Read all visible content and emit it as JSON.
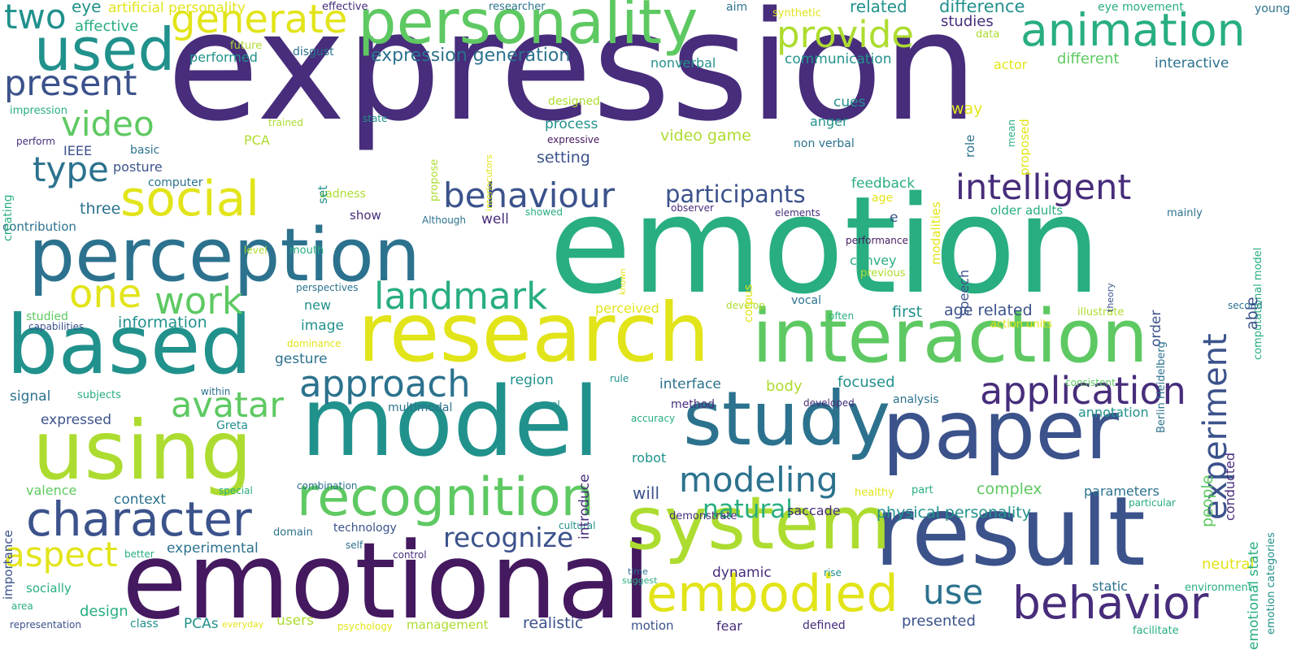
{
  "palette": {
    "c0": "#44195f",
    "c1": "#472d7b",
    "c2": "#3b528b",
    "c3": "#2c728e",
    "c4": "#21918c",
    "c5": "#28ae80",
    "c6": "#5ec962",
    "c7": "#addc30",
    "c8": "#e2e41a"
  },
  "words": [
    {
      "text": "expression",
      "color": "c1"
    },
    {
      "text": "emotion",
      "color": "c5"
    },
    {
      "text": "emotional",
      "color": "c0"
    },
    {
      "text": "model",
      "color": "c4"
    },
    {
      "text": "research",
      "color": "c8"
    },
    {
      "text": "interaction",
      "color": "c6"
    },
    {
      "text": "result",
      "color": "c2"
    },
    {
      "text": "paper",
      "color": "c2"
    },
    {
      "text": "study",
      "color": "c3"
    },
    {
      "text": "system",
      "color": "c7"
    },
    {
      "text": "perception",
      "color": "c3"
    },
    {
      "text": "based",
      "color": "c4"
    },
    {
      "text": "using",
      "color": "c7"
    },
    {
      "text": "personality",
      "color": "c6"
    },
    {
      "text": "animation",
      "color": "c5"
    },
    {
      "text": "used",
      "color": "c4"
    },
    {
      "text": "recognition",
      "color": "c6"
    },
    {
      "text": "embodied",
      "color": "c8"
    },
    {
      "text": "behavior",
      "color": "c1"
    },
    {
      "text": "character",
      "color": "c2"
    },
    {
      "text": "social",
      "color": "c8"
    },
    {
      "text": "application",
      "color": "c1"
    },
    {
      "text": "avatar",
      "color": "c6"
    },
    {
      "text": "approach",
      "color": "c3"
    },
    {
      "text": "generate",
      "color": "c8"
    },
    {
      "text": "provide",
      "color": "c7"
    },
    {
      "text": "present",
      "color": "c2"
    },
    {
      "text": "video",
      "color": "c6"
    },
    {
      "text": "landmark",
      "color": "c5"
    },
    {
      "text": "intelligent",
      "color": "c1"
    },
    {
      "text": "behaviour",
      "color": "c2"
    },
    {
      "text": "participants",
      "color": "c2"
    },
    {
      "text": "one",
      "color": "c8"
    },
    {
      "text": "work",
      "color": "c6"
    },
    {
      "text": "type",
      "color": "c3"
    },
    {
      "text": "aspect",
      "color": "c8"
    },
    {
      "text": "modeling",
      "color": "c3"
    },
    {
      "text": "use",
      "color": "c3"
    },
    {
      "text": "recognize",
      "color": "c2"
    },
    {
      "text": "two",
      "color": "c4"
    },
    {
      "text": "experiment",
      "color": "c2"
    },
    {
      "text": "expression generation",
      "color": "c3"
    },
    {
      "text": "related",
      "color": "c4"
    },
    {
      "text": "difference",
      "color": "c4"
    },
    {
      "text": "studies",
      "color": "c1"
    },
    {
      "text": "young",
      "color": "c3"
    },
    {
      "text": "eye movement",
      "color": "c5"
    },
    {
      "text": "artificial personality",
      "color": "c8"
    },
    {
      "text": "eye",
      "color": "c4"
    },
    {
      "text": "affective",
      "color": "c5"
    },
    {
      "text": "effective",
      "color": "c1"
    },
    {
      "text": "researcher",
      "color": "c3"
    },
    {
      "text": "aim",
      "color": "c3"
    },
    {
      "text": "synthetic",
      "color": "c8"
    },
    {
      "text": "data",
      "color": "c7"
    },
    {
      "text": "different",
      "color": "c6"
    },
    {
      "text": "interactive",
      "color": "c3"
    },
    {
      "text": "communication",
      "color": "c4"
    },
    {
      "text": "nonverbal",
      "color": "c4"
    },
    {
      "text": "actor",
      "color": "c8"
    },
    {
      "text": "future",
      "color": "c7"
    },
    {
      "text": "disgust",
      "color": "c3"
    },
    {
      "text": "performed",
      "color": "c4"
    },
    {
      "text": "impression",
      "color": "c5"
    },
    {
      "text": "trained",
      "color": "c7"
    },
    {
      "text": "state",
      "color": "c4"
    },
    {
      "text": "perform",
      "color": "c1"
    },
    {
      "text": "IEEE",
      "color": "c2"
    },
    {
      "text": "basic",
      "color": "c3"
    },
    {
      "text": "posture",
      "color": "c2"
    },
    {
      "text": "PCA",
      "color": "c7"
    },
    {
      "text": "computer",
      "color": "c3"
    },
    {
      "text": "sadness",
      "color": "c7"
    },
    {
      "text": "three",
      "color": "c3"
    },
    {
      "text": "show",
      "color": "c1"
    },
    {
      "text": "well",
      "color": "c1"
    },
    {
      "text": "contribution",
      "color": "c3"
    },
    {
      "text": "level",
      "color": "c7"
    },
    {
      "text": "mouth",
      "color": "c5"
    },
    {
      "text": "Although",
      "color": "c3"
    },
    {
      "text": "showed",
      "color": "c5"
    },
    {
      "text": "observer",
      "color": "c1"
    },
    {
      "text": "elements",
      "color": "c1"
    },
    {
      "text": "older adults",
      "color": "c5"
    },
    {
      "text": "mainly",
      "color": "c3"
    },
    {
      "text": "e",
      "color": "c2"
    },
    {
      "text": "performance",
      "color": "c0"
    },
    {
      "text": "convey",
      "color": "c5"
    },
    {
      "text": "previous",
      "color": "c7"
    },
    {
      "text": "perspectives",
      "color": "c3"
    },
    {
      "text": "develop",
      "color": "c7"
    },
    {
      "text": "vocal",
      "color": "c3"
    },
    {
      "text": "new",
      "color": "c4"
    },
    {
      "text": "perceived",
      "color": "c8"
    },
    {
      "text": "first",
      "color": "c4"
    },
    {
      "text": "age related",
      "color": "c2"
    },
    {
      "text": "illustrate",
      "color": "c7"
    },
    {
      "text": "second",
      "color": "c3"
    },
    {
      "text": "often",
      "color": "c5"
    },
    {
      "text": "studied",
      "color": "c6"
    },
    {
      "text": "capabilities",
      "color": "c2"
    },
    {
      "text": "information",
      "color": "c4"
    },
    {
      "text": "image",
      "color": "c4"
    },
    {
      "text": "action units",
      "color": "c8"
    },
    {
      "text": "dominance",
      "color": "c8"
    },
    {
      "text": "gesture",
      "color": "c3"
    },
    {
      "text": "rule",
      "color": "c4"
    },
    {
      "text": "interface",
      "color": "c3"
    },
    {
      "text": "body",
      "color": "c7"
    },
    {
      "text": "focused",
      "color": "c4"
    },
    {
      "text": "consistent",
      "color": "c6"
    },
    {
      "text": "region",
      "color": "c4"
    },
    {
      "text": "signal",
      "color": "c3"
    },
    {
      "text": "subjects",
      "color": "c5"
    },
    {
      "text": "within",
      "color": "c3"
    },
    {
      "text": "analysis",
      "color": "c3"
    },
    {
      "text": "method",
      "color": "c1"
    },
    {
      "text": "developed",
      "color": "c1"
    },
    {
      "text": "multimodal",
      "color": "c3"
    },
    {
      "text": "novel",
      "color": "c4"
    },
    {
      "text": "annotation",
      "color": "c4"
    },
    {
      "text": "expressed",
      "color": "c2"
    },
    {
      "text": "Greta",
      "color": "c4"
    },
    {
      "text": "accuracy",
      "color": "c5"
    },
    {
      "text": "robot",
      "color": "c4"
    },
    {
      "text": "valence",
      "color": "c6"
    },
    {
      "text": "context",
      "color": "c3"
    },
    {
      "text": "combination",
      "color": "c3"
    },
    {
      "text": "special",
      "color": "c5"
    },
    {
      "text": "will",
      "color": "c2"
    },
    {
      "text": "natural",
      "color": "c5"
    },
    {
      "text": "complex",
      "color": "c6"
    },
    {
      "text": "parameters",
      "color": "c3"
    },
    {
      "text": "healthy",
      "color": "c8"
    },
    {
      "text": "part",
      "color": "c5"
    },
    {
      "text": "particular",
      "color": "c5"
    },
    {
      "text": "domain",
      "color": "c3"
    },
    {
      "text": "demonstrate",
      "color": "c1"
    },
    {
      "text": "saccade",
      "color": "c1"
    },
    {
      "text": "physical personality",
      "color": "c4"
    },
    {
      "text": "technology",
      "color": "c2"
    },
    {
      "text": "cultural",
      "color": "c4"
    },
    {
      "text": "experimental",
      "color": "c3"
    },
    {
      "text": "self",
      "color": "c3"
    },
    {
      "text": "control",
      "color": "c1"
    },
    {
      "text": "better",
      "color": "c5"
    },
    {
      "text": "dynamic",
      "color": "c1"
    },
    {
      "text": "socially",
      "color": "c5"
    },
    {
      "text": "time",
      "color": "c3"
    },
    {
      "text": "suggest",
      "color": "c5"
    },
    {
      "text": "rise",
      "color": "c4"
    },
    {
      "text": "static",
      "color": "c3"
    },
    {
      "text": "environment",
      "color": "c5"
    },
    {
      "text": "neutral",
      "color": "c8"
    },
    {
      "text": "area",
      "color": "c5"
    },
    {
      "text": "design",
      "color": "c5"
    },
    {
      "text": "representation",
      "color": "c2"
    },
    {
      "text": "class",
      "color": "c4"
    },
    {
      "text": "PCAs",
      "color": "c4"
    },
    {
      "text": "everyday",
      "color": "c8"
    },
    {
      "text": "users",
      "color": "c7"
    },
    {
      "text": "psychology",
      "color": "c8"
    },
    {
      "text": "management",
      "color": "c7"
    },
    {
      "text": "realistic",
      "color": "c2"
    },
    {
      "text": "motion",
      "color": "c2"
    },
    {
      "text": "fear",
      "color": "c1"
    },
    {
      "text": "defined",
      "color": "c1"
    },
    {
      "text": "presented",
      "color": "c2"
    },
    {
      "text": "facilitate",
      "color": "c5"
    },
    {
      "text": "setting",
      "color": "c2"
    },
    {
      "text": "process",
      "color": "c4"
    },
    {
      "text": "video game",
      "color": "c7"
    },
    {
      "text": "anger",
      "color": "c4"
    },
    {
      "text": "cues",
      "color": "c4"
    },
    {
      "text": "expressive",
      "color": "c0"
    },
    {
      "text": "designed",
      "color": "c7"
    },
    {
      "text": "way",
      "color": "c8"
    },
    {
      "text": "non verbal",
      "color": "c3"
    },
    {
      "text": "feedback",
      "color": "c5"
    },
    {
      "text": "age",
      "color": "c8"
    },
    {
      "text": "creating",
      "color": "c5"
    },
    {
      "text": "importance",
      "color": "c2"
    },
    {
      "text": "modalities",
      "color": "c8"
    },
    {
      "text": "role",
      "color": "c3"
    },
    {
      "text": "mean",
      "color": "c5"
    },
    {
      "text": "proposed",
      "color": "c8"
    },
    {
      "text": "computational model",
      "color": "c5"
    },
    {
      "text": "set",
      "color": "c4"
    },
    {
      "text": "propose",
      "color": "c7"
    },
    {
      "text": "interlocutors",
      "color": "c8"
    },
    {
      "text": "corpus",
      "color": "c8"
    },
    {
      "text": "known",
      "color": "c8"
    },
    {
      "text": "speech",
      "color": "c2"
    },
    {
      "text": "order",
      "color": "c2"
    },
    {
      "text": "Berlin Heidelberg",
      "color": "c3"
    },
    {
      "text": "theory",
      "color": "c2"
    },
    {
      "text": "able",
      "color": "c2"
    },
    {
      "text": "introduce",
      "color": "c1"
    },
    {
      "text": "people",
      "color": "c6"
    },
    {
      "text": "conducted",
      "color": "c1"
    },
    {
      "text": "emotional state",
      "color": "c5"
    },
    {
      "text": "emotion categories",
      "color": "c4"
    }
  ]
}
